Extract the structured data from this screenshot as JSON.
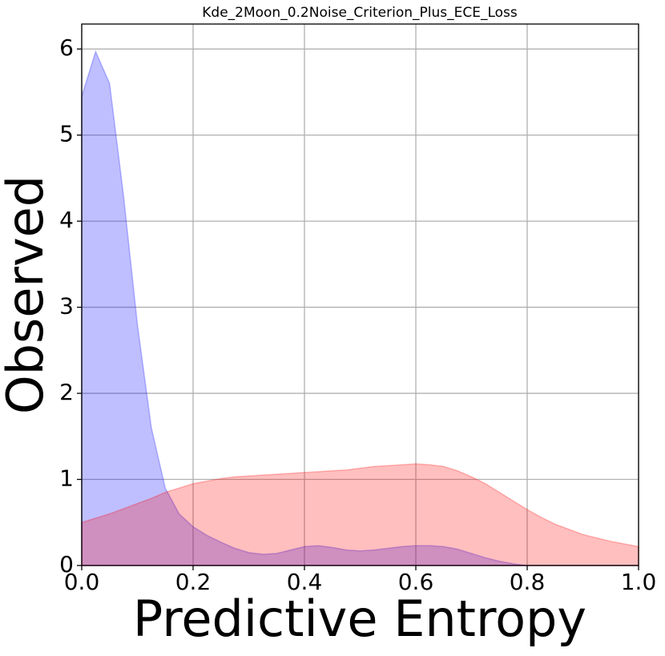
{
  "chart_data": {
    "type": "area",
    "title": "Kde_2Moon_0.2Noise_Criterion_Plus_ECE_Loss",
    "xlabel": "Predictive Entropy",
    "ylabel": "Observed",
    "x": [
      0,
      0.025,
      0.05,
      0.075,
      0.1,
      0.125,
      0.15,
      0.175,
      0.2,
      0.225,
      0.25,
      0.275,
      0.3,
      0.325,
      0.35,
      0.375,
      0.4,
      0.425,
      0.45,
      0.475,
      0.5,
      0.525,
      0.55,
      0.575,
      0.6,
      0.625,
      0.65,
      0.675,
      0.7,
      0.725,
      0.75,
      0.775,
      0.8,
      0.825,
      0.85,
      0.875,
      0.9,
      0.925,
      0.95,
      0.975,
      1
    ],
    "series": [
      {
        "color": "#0000ff",
        "values": [
          5.45,
          5.97,
          5.6,
          4.3,
          2.8,
          1.6,
          0.9,
          0.6,
          0.45,
          0.35,
          0.27,
          0.2,
          0.15,
          0.13,
          0.14,
          0.18,
          0.22,
          0.23,
          0.21,
          0.18,
          0.17,
          0.18,
          0.2,
          0.22,
          0.23,
          0.23,
          0.22,
          0.19,
          0.14,
          0.09,
          0.05,
          0.02,
          0,
          0,
          0,
          0,
          0,
          0,
          0,
          0,
          0
        ]
      },
      {
        "color": "#ff0000",
        "values": [
          0.5,
          0.55,
          0.6,
          0.66,
          0.72,
          0.78,
          0.85,
          0.9,
          0.95,
          0.98,
          1.01,
          1.03,
          1.04,
          1.05,
          1.06,
          1.07,
          1.08,
          1.09,
          1.1,
          1.11,
          1.13,
          1.15,
          1.16,
          1.17,
          1.18,
          1.17,
          1.15,
          1.1,
          1.03,
          0.95,
          0.85,
          0.75,
          0.65,
          0.56,
          0.48,
          0.42,
          0.36,
          0.32,
          0.28,
          0.25,
          0.22
        ]
      }
    ],
    "xlim": [
      0,
      1
    ],
    "ylim": [
      0,
      6.29
    ],
    "xticks": [
      {
        "value": 0,
        "label": "0.0"
      },
      0.2,
      0.4,
      0.6,
      0.8,
      {
        "value": 1,
        "label": "1.0"
      }
    ],
    "yticks": [
      0,
      1,
      2,
      3,
      4,
      5,
      6
    ],
    "grid": true
  }
}
